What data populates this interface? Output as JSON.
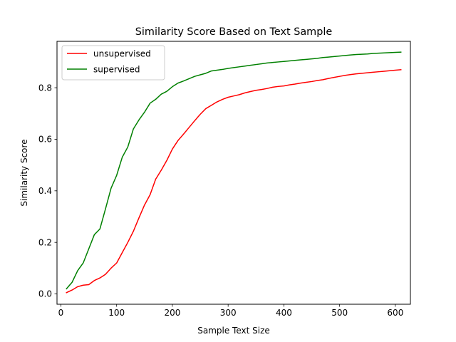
{
  "chart_data": {
    "type": "line",
    "title": "Similarity Score Based on Text Sample",
    "xlabel": "Sample Text Size",
    "ylabel": "Similarity Score",
    "xlim": [
      -7,
      627
    ],
    "ylim": [
      -0.04,
      0.98
    ],
    "xticks": [
      0,
      100,
      200,
      300,
      400,
      500,
      600
    ],
    "yticks": [
      0.0,
      0.2,
      0.4,
      0.6,
      0.8
    ],
    "xtick_labels": [
      "0",
      "100",
      "200",
      "300",
      "400",
      "500",
      "600"
    ],
    "ytick_labels": [
      "0.0",
      "0.2",
      "0.4",
      "0.6",
      "0.8"
    ],
    "grid": false,
    "legend_position": "top-left",
    "x": [
      10,
      20,
      30,
      40,
      50,
      60,
      70,
      80,
      90,
      100,
      110,
      120,
      130,
      140,
      150,
      160,
      170,
      180,
      190,
      200,
      210,
      220,
      230,
      240,
      250,
      260,
      270,
      280,
      290,
      300,
      310,
      320,
      330,
      340,
      350,
      360,
      370,
      380,
      390,
      400,
      410,
      420,
      430,
      440,
      450,
      460,
      470,
      480,
      490,
      500,
      510,
      520,
      530,
      540,
      550,
      560,
      570,
      580,
      590,
      600,
      610
    ],
    "series": [
      {
        "name": "unsupervised",
        "color": "#ff0000",
        "values": [
          0.005,
          0.015,
          0.028,
          0.034,
          0.036,
          0.052,
          0.062,
          0.076,
          0.1,
          0.12,
          0.16,
          0.2,
          0.243,
          0.295,
          0.345,
          0.385,
          0.445,
          0.48,
          0.518,
          0.562,
          0.595,
          0.62,
          0.646,
          0.672,
          0.697,
          0.719,
          0.732,
          0.745,
          0.755,
          0.763,
          0.768,
          0.773,
          0.78,
          0.785,
          0.79,
          0.793,
          0.797,
          0.802,
          0.805,
          0.807,
          0.811,
          0.814,
          0.818,
          0.821,
          0.824,
          0.828,
          0.831,
          0.836,
          0.84,
          0.844,
          0.848,
          0.851,
          0.854,
          0.856,
          0.858,
          0.86,
          0.862,
          0.864,
          0.866,
          0.868,
          0.87
        ]
      },
      {
        "name": "supervised",
        "color": "#008000",
        "values": [
          0.02,
          0.045,
          0.09,
          0.12,
          0.175,
          0.23,
          0.252,
          0.33,
          0.41,
          0.46,
          0.53,
          0.57,
          0.64,
          0.675,
          0.705,
          0.74,
          0.755,
          0.775,
          0.786,
          0.804,
          0.818,
          0.826,
          0.835,
          0.844,
          0.85,
          0.856,
          0.865,
          0.868,
          0.871,
          0.875,
          0.878,
          0.881,
          0.884,
          0.887,
          0.89,
          0.893,
          0.896,
          0.898,
          0.9,
          0.902,
          0.904,
          0.906,
          0.908,
          0.91,
          0.912,
          0.914,
          0.917,
          0.919,
          0.921,
          0.923,
          0.925,
          0.927,
          0.929,
          0.93,
          0.931,
          0.933,
          0.934,
          0.935,
          0.936,
          0.937,
          0.938
        ]
      }
    ]
  }
}
